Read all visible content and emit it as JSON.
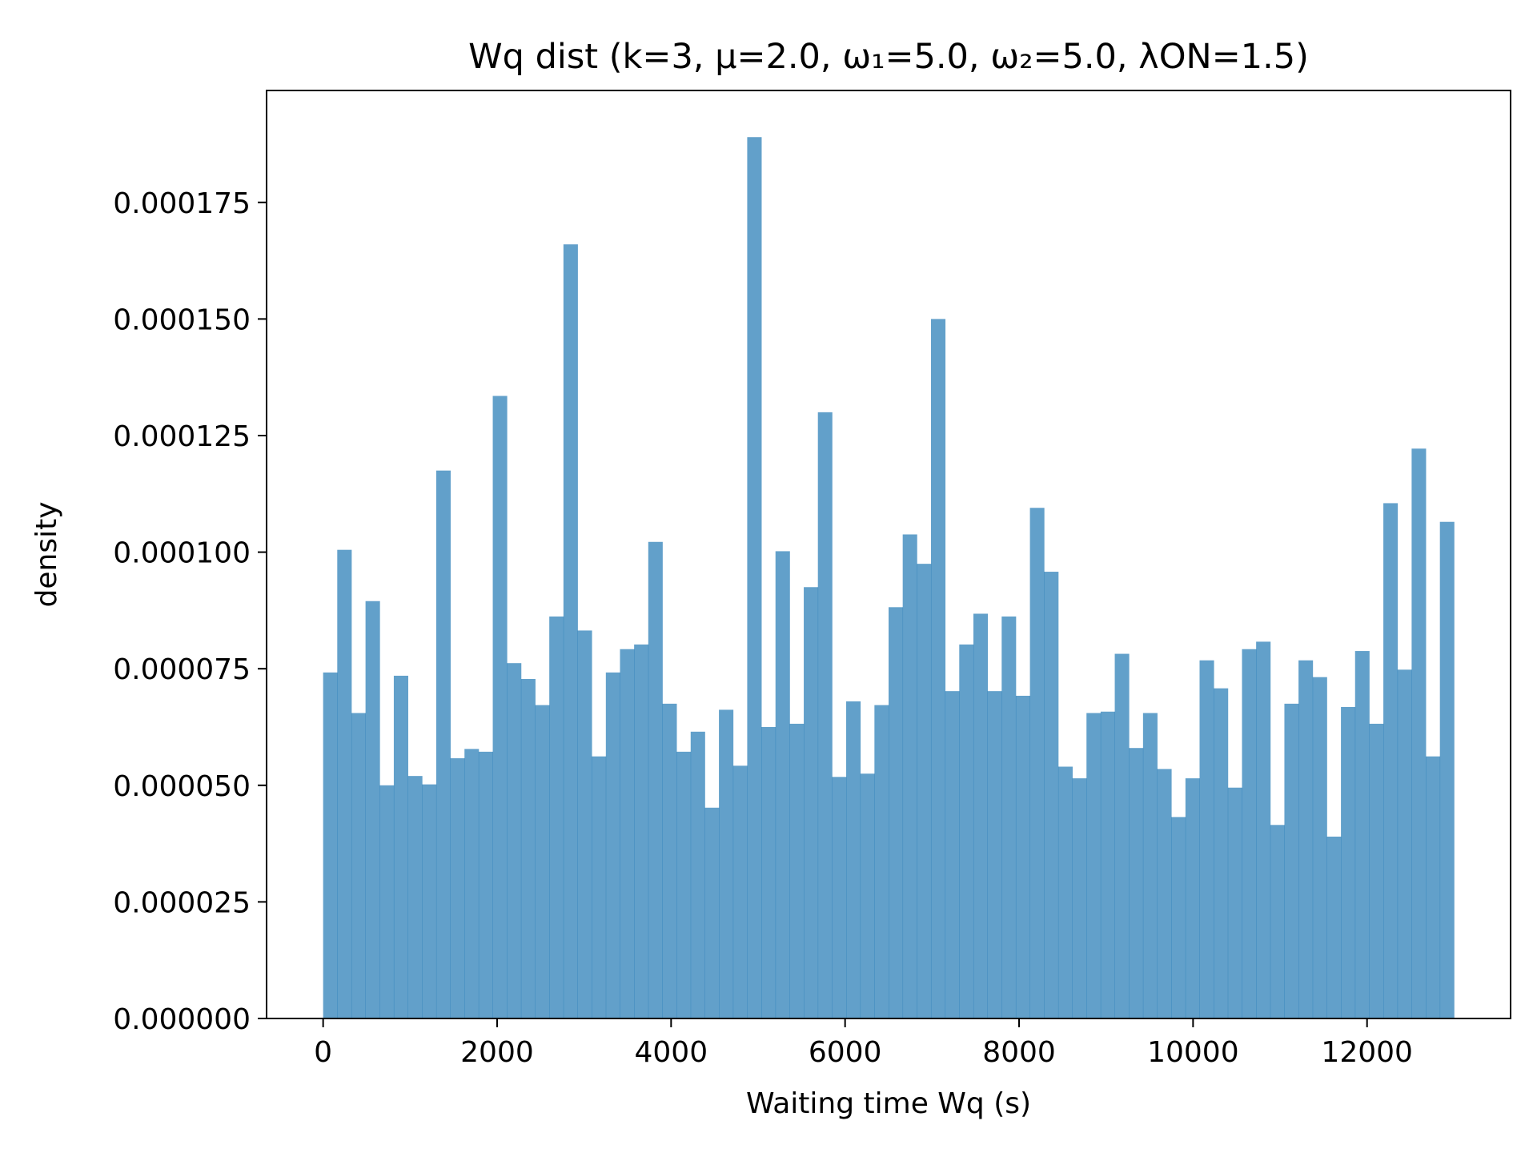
{
  "chart_data": {
    "type": "bar",
    "title": "Wq dist  (k=3, μ=2.0, ω₁=5.0, ω₂=5.0, λON=1.5)",
    "xlabel": "Waiting time  Wq  (s)",
    "ylabel": "density",
    "xlim": [
      -650,
      13650
    ],
    "ylim": [
      0,
      0.000199
    ],
    "xticks": [
      0,
      2000,
      4000,
      6000,
      8000,
      10000,
      12000
    ],
    "xtick_labels": [
      "0",
      "2000",
      "4000",
      "6000",
      "8000",
      "10000",
      "12000"
    ],
    "yticks": [
      0,
      2.5e-05,
      5e-05,
      7.5e-05,
      0.0001,
      0.000125,
      0.00015,
      0.000175
    ],
    "ytick_labels": [
      "0.000000",
      "0.000025",
      "0.000050",
      "0.000075",
      "0.000100",
      "0.000125",
      "0.000150",
      "0.000175"
    ],
    "grid": false,
    "bar_color": "#1f77b4",
    "bar_opacity": 0.7,
    "bin_start": 0,
    "bin_width": 162.5,
    "values": [
      7.42e-05,
      0.0001005,
      6.55e-05,
      8.95e-05,
      5e-05,
      7.35e-05,
      5.2e-05,
      5.02e-05,
      0.0001175,
      5.58e-05,
      5.78e-05,
      5.72e-05,
      0.0001335,
      7.62e-05,
      7.28e-05,
      6.72e-05,
      8.62e-05,
      0.000166,
      8.32e-05,
      5.62e-05,
      7.42e-05,
      7.92e-05,
      8.02e-05,
      0.0001022,
      6.75e-05,
      5.72e-05,
      6.15e-05,
      4.52e-05,
      6.62e-05,
      5.42e-05,
      0.000189,
      6.25e-05,
      0.0001002,
      6.32e-05,
      9.25e-05,
      0.00013,
      5.18e-05,
      6.8e-05,
      5.25e-05,
      6.72e-05,
      8.82e-05,
      0.0001038,
      9.75e-05,
      0.00015,
      7.02e-05,
      8.02e-05,
      8.68e-05,
      7.02e-05,
      8.62e-05,
      6.92e-05,
      0.0001095,
      9.58e-05,
      5.4e-05,
      5.15e-05,
      6.55e-05,
      6.58e-05,
      7.82e-05,
      5.8e-05,
      6.55e-05,
      5.35e-05,
      4.32e-05,
      5.15e-05,
      7.68e-05,
      7.08e-05,
      4.95e-05,
      7.92e-05,
      8.08e-05,
      4.15e-05,
      6.75e-05,
      7.68e-05,
      7.32e-05,
      3.9e-05,
      6.68e-05,
      7.88e-05,
      6.32e-05,
      0.0001105,
      7.48e-05,
      0.0001222,
      5.62e-05,
      0.0001065
    ]
  }
}
